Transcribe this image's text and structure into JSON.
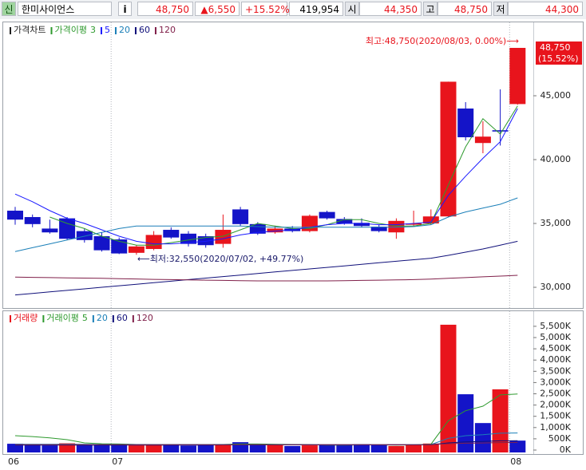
{
  "header": {
    "icon": "신",
    "name": "한미사이언스",
    "info": "i",
    "price": "48,750",
    "change": "▲6,550",
    "rate": "+15.52%",
    "volume": "419,954",
    "open_label": "시",
    "open": "44,350",
    "high_label": "고",
    "high": "48,750",
    "low_label": "저",
    "low": "44,300"
  },
  "chart_data": [
    {
      "type": "candlestick",
      "legend_title": "가격차트",
      "legend_color": "#222222",
      "ma_label": "가격이평",
      "up_color": "#e8141c",
      "down_color": "#1414c8",
      "open": [
        36000,
        35500,
        34600,
        35400,
        34400,
        34000,
        33750,
        32700,
        33000,
        34500,
        34200,
        34000,
        33400,
        36100,
        34950,
        34300,
        34600,
        34400,
        35900,
        35350,
        35050,
        34750,
        34300,
        34900,
        35000,
        35550,
        44000,
        41300,
        42300,
        44350
      ],
      "high": [
        36300,
        35700,
        35300,
        35500,
        34600,
        34300,
        33900,
        33300,
        34400,
        34700,
        34400,
        34200,
        35700,
        36300,
        35100,
        34800,
        34800,
        35700,
        36000,
        35500,
        35400,
        34900,
        35400,
        36000,
        36100,
        46100,
        44500,
        43000,
        45500,
        48750
      ],
      "low": [
        34900,
        34700,
        34200,
        33700,
        33500,
        32800,
        32600,
        32550,
        32900,
        33800,
        33200,
        33100,
        33100,
        34800,
        34100,
        34200,
        34300,
        34300,
        35300,
        34900,
        34700,
        34300,
        33800,
        34800,
        34900,
        35500,
        41500,
        40500,
        41100,
        44300
      ],
      "close": [
        35300,
        34950,
        34300,
        33800,
        33700,
        32900,
        32650,
        33200,
        34100,
        33900,
        33400,
        33300,
        34500,
        34950,
        34200,
        34600,
        34400,
        35600,
        35400,
        35000,
        34800,
        34400,
        35200,
        35000,
        35550,
        46100,
        41750,
        41800,
        42200,
        48750
      ],
      "series": [
        {
          "name": "3",
          "color": "#2e9a2e",
          "values": [
            null,
            null,
            35500,
            35000,
            34600,
            34000,
            33600,
            33300,
            33300,
            33500,
            33700,
            33900,
            34000,
            34500,
            35000,
            34800,
            34600,
            34600,
            34900,
            35300,
            35300,
            35000,
            34800,
            34800,
            35000,
            38000,
            41000,
            43200,
            42000,
            44200
          ]
        },
        {
          "name": "5",
          "color": "#1a1aff",
          "values": [
            37300,
            36700,
            36000,
            35400,
            35000,
            34500,
            34000,
            33600,
            33400,
            33400,
            33500,
            33600,
            33800,
            34100,
            34300,
            34400,
            34500,
            34700,
            34900,
            35000,
            35000,
            34900,
            34900,
            35000,
            35100,
            37200,
            38700,
            40100,
            41400,
            44000
          ]
        },
        {
          "name": "20",
          "color": "#1a7fb8",
          "values": [
            32800,
            33100,
            33400,
            33700,
            34000,
            34300,
            34600,
            34800,
            34800,
            34800,
            34800,
            34800,
            34800,
            34800,
            34750,
            34700,
            34700,
            34700,
            34700,
            34700,
            34700,
            34700,
            34700,
            34750,
            34900,
            35500,
            35900,
            36200,
            36500,
            37000
          ]
        },
        {
          "name": "60",
          "color": "#10107a",
          "values": [
            29400,
            29520,
            29640,
            29760,
            29880,
            30000,
            30120,
            30240,
            30360,
            30480,
            30600,
            30720,
            30840,
            30960,
            31080,
            31200,
            31320,
            31440,
            31560,
            31680,
            31800,
            31920,
            32040,
            32160,
            32280,
            32500,
            32750,
            33000,
            33300,
            33600
          ]
        },
        {
          "name": "120",
          "color": "#80204a",
          "values": [
            30800,
            30780,
            30760,
            30740,
            30720,
            30700,
            30680,
            30650,
            30620,
            30600,
            30580,
            30560,
            30540,
            30520,
            30500,
            30500,
            30500,
            30500,
            30500,
            30520,
            30540,
            30560,
            30580,
            30600,
            30640,
            30700,
            30760,
            30820,
            30880,
            30940
          ]
        }
      ],
      "ylim": [
        28440,
        50750
      ],
      "yticks": [
        {
          "value": 30000,
          "label": "30,000"
        },
        {
          "value": 35000,
          "label": "35,000"
        },
        {
          "value": 40000,
          "label": "40,000"
        },
        {
          "value": 45000,
          "label": "45,000"
        }
      ],
      "current_price": {
        "value": 48750,
        "label": "48,750"
      },
      "current_rate": "(15.52%)",
      "annotations": [
        "최고:48,750(2020/08/03, 0.00%)⟶",
        "⟵최저:32,550(2020/07/02, +49.77%)"
      ]
    },
    {
      "type": "bar",
      "legend_title": "거래량",
      "legend_color": "#e8141c",
      "ma_label": "거래이평",
      "values": [
        280000,
        250000,
        210000,
        300000,
        240000,
        260000,
        250000,
        210000,
        230000,
        260000,
        200000,
        240000,
        230000,
        350000,
        230000,
        220000,
        180000,
        210000,
        230000,
        240000,
        260000,
        220000,
        180000,
        220000,
        290000,
        5570000,
        2480000,
        1200000,
        2700000,
        420000
      ],
      "colors": [
        "#1414c8",
        "#1414c8",
        "#1414c8",
        "#e8141c",
        "#1414c8",
        "#1414c8",
        "#1414c8",
        "#e8141c",
        "#e8141c",
        "#1414c8",
        "#1414c8",
        "#1414c8",
        "#e8141c",
        "#1414c8",
        "#1414c8",
        "#e8141c",
        "#1414c8",
        "#e8141c",
        "#1414c8",
        "#1414c8",
        "#1414c8",
        "#1414c8",
        "#e8141c",
        "#e8141c",
        "#e8141c",
        "#e8141c",
        "#1414c8",
        "#1414c8",
        "#e8141c",
        "#1414c8"
      ],
      "series": [
        {
          "name": "5",
          "color": "#2e9a2e",
          "values": [
            640000,
            600000,
            540000,
            460000,
            320000,
            280000,
            270000,
            250000,
            240000,
            240000,
            240000,
            240000,
            250000,
            270000,
            270000,
            260000,
            250000,
            240000,
            220000,
            220000,
            230000,
            230000,
            220000,
            230000,
            260000,
            1300000,
            1750000,
            1950000,
            2450000,
            2490000
          ]
        },
        {
          "name": "20",
          "color": "#1a7fb8",
          "values": [
            260000,
            260000,
            260000,
            255000,
            255000,
            250000,
            250000,
            250000,
            245000,
            245000,
            245000,
            245000,
            245000,
            245000,
            245000,
            240000,
            240000,
            240000,
            240000,
            240000,
            240000,
            240000,
            240000,
            240000,
            245000,
            520000,
            640000,
            680000,
            750000,
            760000
          ]
        },
        {
          "name": "60",
          "color": "#10107a",
          "values": [
            220000,
            220000,
            220000,
            220000,
            220000,
            220000,
            225000,
            225000,
            225000,
            225000,
            225000,
            225000,
            230000,
            230000,
            230000,
            230000,
            230000,
            230000,
            230000,
            230000,
            230000,
            230000,
            230000,
            230000,
            235000,
            320000,
            360000,
            380000,
            410000,
            420000
          ]
        },
        {
          "name": "120",
          "color": "#80204a",
          "values": [
            240000,
            240000,
            240000,
            240000,
            240000,
            240000,
            240000,
            240000,
            240000,
            240000,
            240000,
            240000,
            240000,
            240000,
            240000,
            240000,
            240000,
            240000,
            240000,
            240000,
            240000,
            240000,
            240000,
            240000,
            240000,
            285000,
            305000,
            315000,
            335000,
            340000
          ]
        }
      ],
      "ylim": [
        0,
        6100000
      ],
      "yticks": [
        {
          "value": 0,
          "label": "0K"
        },
        {
          "value": 500000,
          "label": "500K"
        },
        {
          "value": 1000000,
          "label": "1,000K"
        },
        {
          "value": 1500000,
          "label": "1,500K"
        },
        {
          "value": 2000000,
          "label": "2,000K"
        },
        {
          "value": 2500000,
          "label": "2,500K"
        },
        {
          "value": 3000000,
          "label": "3,000K"
        },
        {
          "value": 3500000,
          "label": "3,500K"
        },
        {
          "value": 4000000,
          "label": "4,000K"
        },
        {
          "value": 4500000,
          "label": "4,500K"
        },
        {
          "value": 5000000,
          "label": "5,000K"
        },
        {
          "value": 5500000,
          "label": "5,500K"
        }
      ],
      "xticks": [
        {
          "value": 0,
          "label": "06"
        },
        {
          "value": 6,
          "label": "07"
        },
        {
          "value": 29,
          "label": "08"
        }
      ]
    }
  ]
}
